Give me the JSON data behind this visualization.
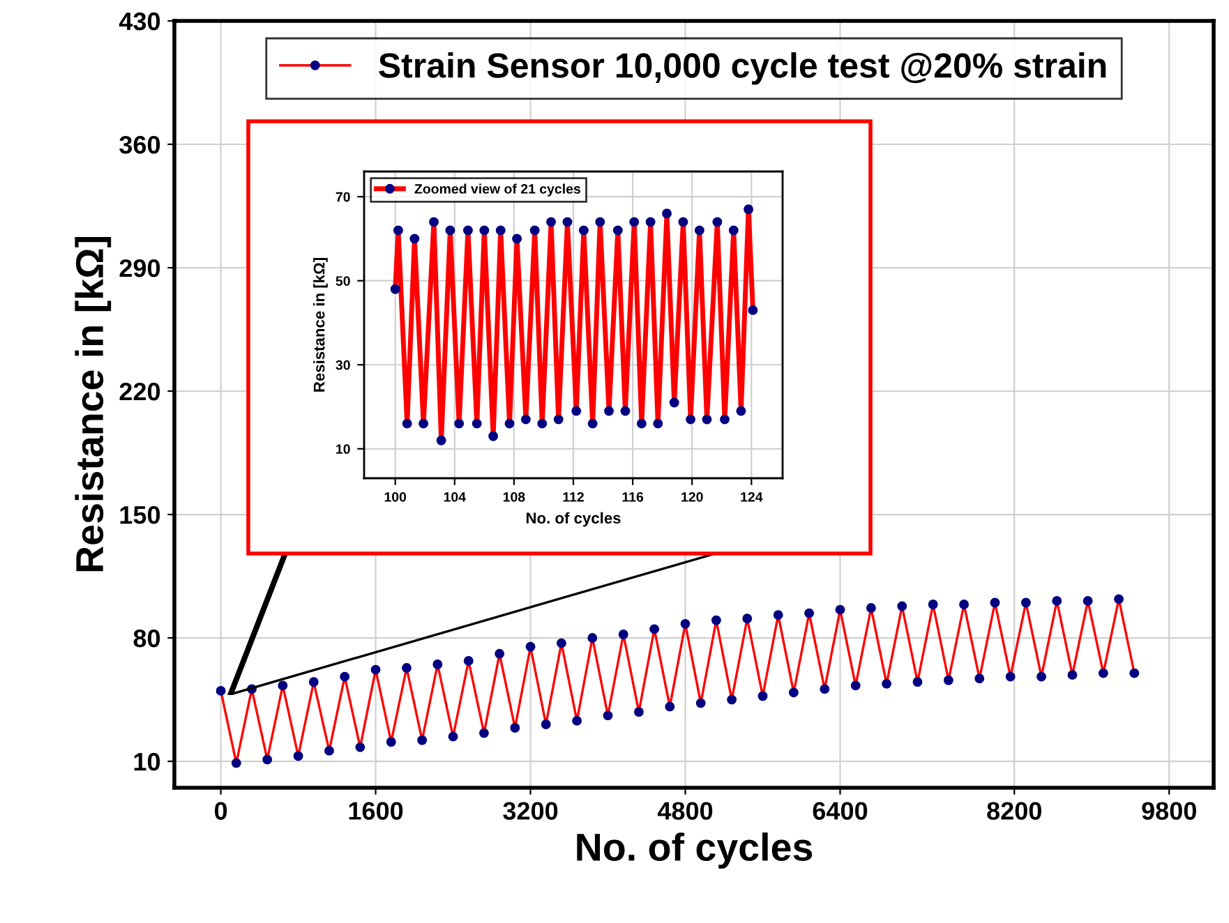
{
  "chart_data": [
    {
      "type": "line",
      "xlabel": "No. of cycles",
      "ylabel": "Resistance in [kΩ]",
      "xlim": [
        -480,
        10260
      ],
      "ylim": [
        -5,
        430
      ],
      "xticks": [
        0,
        1600,
        3200,
        4800,
        6400,
        8200,
        9800
      ],
      "yticks": [
        10,
        80,
        150,
        220,
        290,
        360,
        430
      ],
      "grid": true,
      "legend": "top",
      "marker": "circle",
      "line_style": "solid",
      "series": [
        {
          "name": "Strain Sensor 10,000 cycle test @20% strain",
          "color": "#ff0000",
          "x": [
            0,
            160,
            320,
            480,
            640,
            800,
            960,
            1120,
            1280,
            1440,
            1600,
            1760,
            1920,
            2080,
            2240,
            2400,
            2560,
            2720,
            2880,
            3040,
            3200,
            3360,
            3520,
            3680,
            3840,
            4000,
            4160,
            4320,
            4480,
            4640,
            4800,
            4960,
            5120,
            5280,
            5440,
            5600,
            5760,
            5920,
            6080,
            6240,
            6400,
            6560,
            6720,
            6880,
            7040,
            7200,
            7360,
            7520,
            7680,
            7840,
            8000,
            8160,
            8320,
            8480,
            8640,
            8800,
            8960,
            9120,
            9280,
            9440
          ],
          "values": [
            50,
            9,
            51,
            11,
            53,
            13,
            55,
            16,
            58,
            18,
            62,
            21,
            63,
            22,
            65,
            24,
            67,
            26,
            71,
            29,
            75,
            31,
            77,
            33,
            80,
            36,
            82,
            38,
            85,
            41,
            88,
            43,
            90,
            45,
            91,
            47,
            93,
            49,
            94,
            51,
            96,
            53,
            97,
            54,
            98,
            55,
            99,
            56,
            99,
            57,
            100,
            58,
            100,
            58,
            101,
            59,
            101,
            60,
            102,
            60
          ]
        }
      ]
    },
    {
      "type": "line",
      "xlabel": "No. of cycles",
      "ylabel": "Resistance in [kΩ]",
      "xlim": [
        97.9,
        126.1
      ],
      "ylim": [
        3,
        76
      ],
      "xticks": [
        100,
        104,
        108,
        112,
        116,
        120,
        124
      ],
      "yticks": [
        10,
        30,
        50,
        70
      ],
      "grid": true,
      "legend": "top left",
      "marker": "circle",
      "line_style": "solid",
      "series": [
        {
          "name": "Zoomed view of 21 cycles",
          "color": "#ff0000",
          "x": [
            100.0,
            100.2,
            100.8,
            101.3,
            101.9,
            102.6,
            103.1,
            103.7,
            104.3,
            104.9,
            105.5,
            106.0,
            106.6,
            107.1,
            107.7,
            108.2,
            108.8,
            109.4,
            109.9,
            110.5,
            111.0,
            111.6,
            112.2,
            112.7,
            113.3,
            113.8,
            114.4,
            115.0,
            115.5,
            116.1,
            116.6,
            117.2,
            117.7,
            118.3,
            118.8,
            119.4,
            119.9,
            120.5,
            121.0,
            121.7,
            122.2,
            122.8,
            123.3,
            123.8,
            124.1
          ],
          "values": [
            48,
            62,
            16,
            60,
            16,
            64,
            12,
            62,
            16,
            62,
            16,
            62,
            13,
            62,
            16,
            60,
            17,
            62,
            16,
            64,
            17,
            64,
            19,
            62,
            16,
            64,
            19,
            62,
            19,
            64,
            16,
            64,
            16,
            66,
            21,
            64,
            17,
            62,
            17,
            64,
            17,
            62,
            19,
            67,
            43
          ]
        }
      ]
    }
  ]
}
